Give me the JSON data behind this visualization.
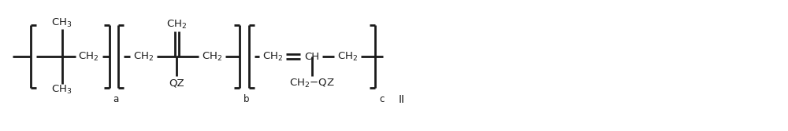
{
  "bg_color": "#ffffff",
  "line_color": "#1a1a1a",
  "text_color": "#1a1a1a",
  "lw": 2.0,
  "figsize": [
    10.0,
    1.67
  ],
  "dpi": 100,
  "xlim": [
    0,
    100
  ],
  "ylim": [
    0,
    16.7
  ],
  "yb": 9.5,
  "fs_chem": 9.5,
  "fs_label": 8.5,
  "fs_II": 10.0
}
